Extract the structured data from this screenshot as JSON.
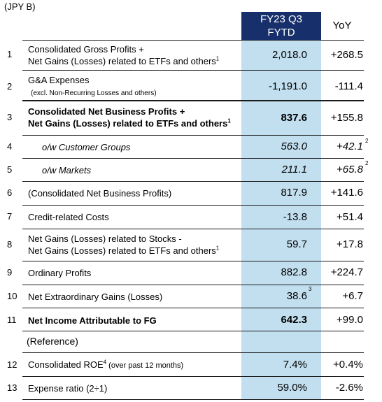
{
  "unit": "(JPY B)",
  "header": {
    "fy_line1": "FY23 Q3",
    "fy_line2": "FYTD",
    "yoy": "YoY"
  },
  "rows": [
    {
      "num": "1",
      "l1": "Consolidated Gross Profits +",
      "l2": "Net Gains (Losses) related to ETFs and others",
      "l2_sup": "1",
      "value": "2,018.0",
      "yoy": "+268.5"
    },
    {
      "num": "2",
      "l1": "G&A Expenses",
      "l2": "(excl. Non-Recurring Losses and others)",
      "value": "-1,191.0",
      "yoy": "-111.4"
    },
    {
      "num": "3",
      "l1": "Consolidated Net Business Profits  +",
      "l2": "Net Gains (Losses) related to ETFs and others",
      "l2_sup": "1",
      "value": "837.6",
      "yoy": "+155.8"
    },
    {
      "num": "4",
      "l1": "o/w Customer Groups",
      "value": "563.0",
      "yoy": "+42.1",
      "yoy_sup": "2"
    },
    {
      "num": "5",
      "l1": "o/w Markets",
      "value": "211.1",
      "yoy": "+65.8",
      "yoy_sup": "2"
    },
    {
      "num": "6",
      "l1": "(Consolidated Net Business Profits)",
      "value": "817.9",
      "yoy": "+141.6"
    },
    {
      "num": "7",
      "l1": "Credit-related Costs",
      "value": "-13.8",
      "yoy": "+51.4"
    },
    {
      "num": "8",
      "l1": "Net Gains (Losses) related to Stocks -",
      "l2": "Net Gains (Losses) related to ETFs and others",
      "l2_sup": "1",
      "value": "59.7",
      "yoy": "+17.8"
    },
    {
      "num": "9",
      "l1": "Ordinary Profits",
      "value": "882.8",
      "yoy": "+224.7"
    },
    {
      "num": "10",
      "l1": "Net Extraordinary Gains (Losses)",
      "value": "38.6",
      "value_sup": "3",
      "yoy": "+6.7"
    },
    {
      "num": "11",
      "l1": "Net Income Attributable to FG",
      "value": "642.3",
      "yoy": "+99.0"
    },
    {
      "l1": "(Reference)"
    },
    {
      "num": "12",
      "l1": "Consolidated ROE",
      "l1_sup": "4",
      "l1_small": " (over past 12 months)",
      "value": "7.4%",
      "yoy": "+0.4%"
    },
    {
      "num": "13",
      "l1": "Expense ratio (2÷1)",
      "value": "59.0%",
      "yoy": "-2.6%"
    }
  ]
}
